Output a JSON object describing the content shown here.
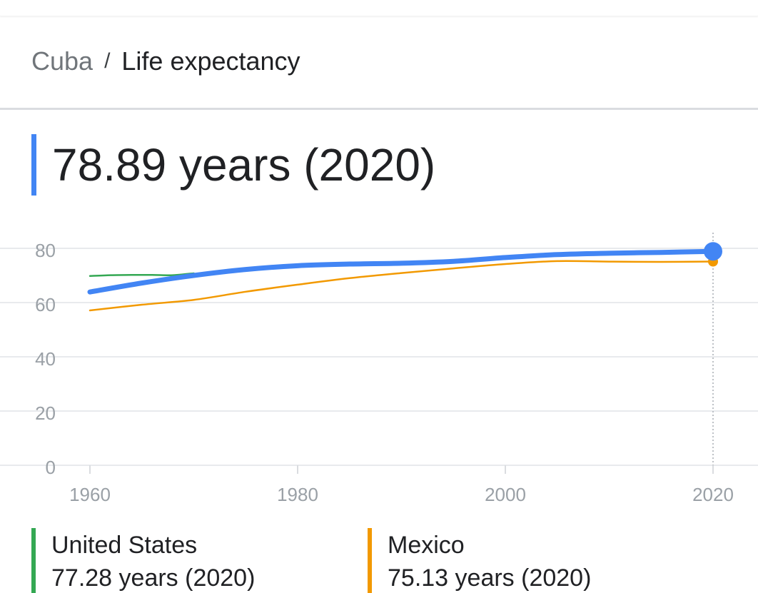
{
  "breadcrumb": {
    "parent": "Cuba",
    "separator": "/",
    "current": "Life expectancy"
  },
  "main": {
    "value_text": "78.89 years (2020)",
    "accent_color": "#4285f4"
  },
  "legend": [
    {
      "name": "United States",
      "value_text": "77.28 years (2020)",
      "color": "#34a853"
    },
    {
      "name": "Mexico",
      "value_text": "75.13 years (2020)",
      "color": "#f29900"
    }
  ],
  "chart_data": {
    "type": "line",
    "title": "Life expectancy",
    "xlabel": "",
    "ylabel": "",
    "xlim": [
      1960,
      2020
    ],
    "ylim": [
      0,
      80
    ],
    "x_ticks": [
      "1960",
      "1980",
      "2000",
      "2020"
    ],
    "y_ticks": [
      "0",
      "20",
      "40",
      "60",
      "80"
    ],
    "grid": true,
    "series": [
      {
        "name": "Cuba",
        "color": "#4285f4",
        "x": [
          1960,
          1965,
          1970,
          1975,
          1980,
          1985,
          1990,
          1995,
          2000,
          2005,
          2010,
          2015,
          2020
        ],
        "values": [
          63.9,
          67.2,
          70.0,
          72.2,
          73.6,
          74.2,
          74.5,
          75.2,
          76.6,
          77.7,
          78.2,
          78.5,
          78.89
        ]
      },
      {
        "name": "United States",
        "color": "#34a853",
        "x": [
          1960,
          1962,
          1964,
          1966,
          1968,
          1970
        ],
        "values": [
          69.8,
          70.1,
          70.2,
          70.2,
          70.1,
          70.8
        ]
      },
      {
        "name": "Mexico",
        "color": "#f29900",
        "x": [
          1960,
          1965,
          1970,
          1975,
          1980,
          1985,
          1990,
          1995,
          2000,
          2005,
          2010,
          2015,
          2020
        ],
        "values": [
          57.1,
          59.2,
          61.0,
          64.0,
          66.6,
          69.0,
          70.9,
          72.6,
          74.2,
          75.3,
          75.1,
          75.0,
          75.13
        ]
      }
    ],
    "highlight_x": 2020
  }
}
